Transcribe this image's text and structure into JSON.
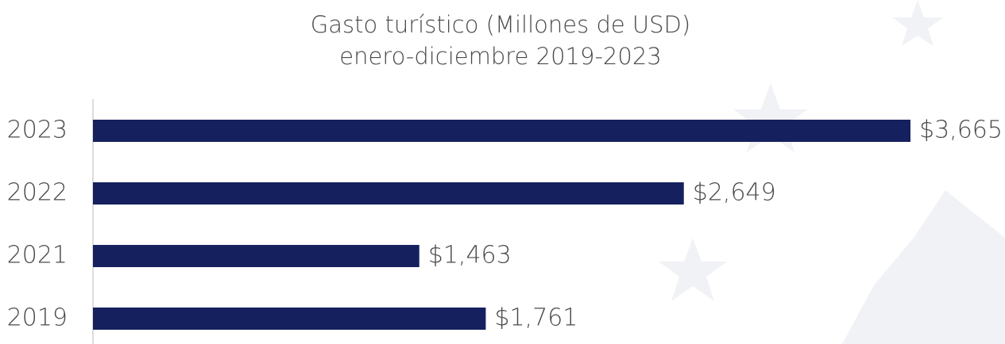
{
  "chart_data": {
    "type": "hbar",
    "title": "Gasto turístico (Millones de USD)",
    "subtitle": "enero-diciembre 2019-2023",
    "categories": [
      "2023",
      "2022",
      "2021",
      "2019"
    ],
    "values": [
      3665,
      2649,
      1463,
      1761
    ],
    "value_labels": [
      "$3,665",
      "$2,649",
      "$1,463",
      "$1,761"
    ],
    "color": "#15205e"
  }
}
